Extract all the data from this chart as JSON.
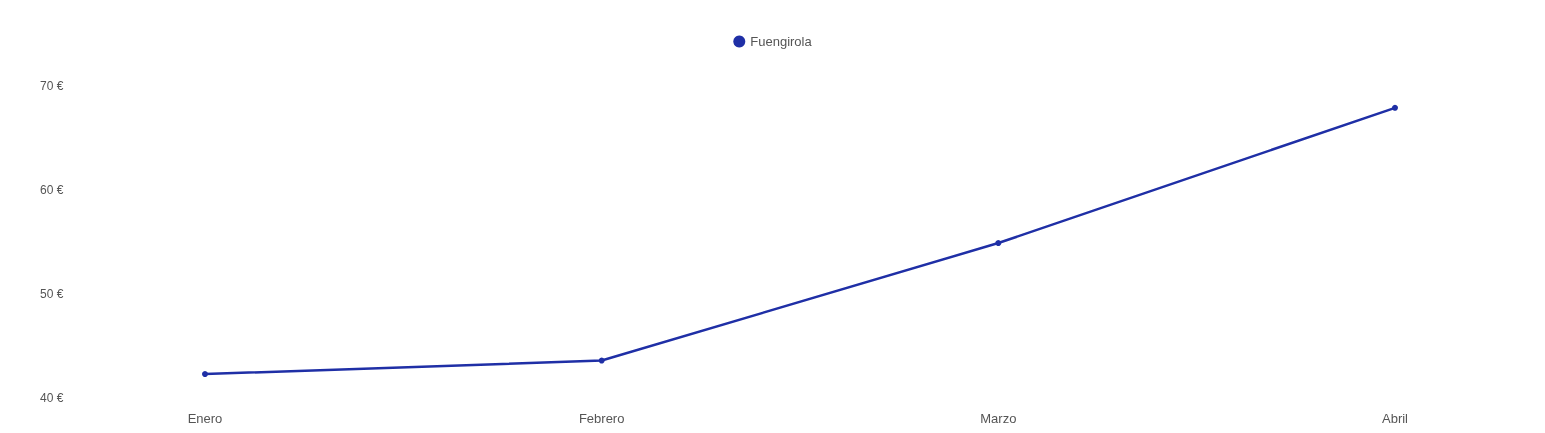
{
  "chart_data": {
    "type": "line",
    "categories": [
      "Enero",
      "Febrero",
      "Marzo",
      "Abril"
    ],
    "series": [
      {
        "name": "Fuengirola",
        "color": "#1f2fa6",
        "values": [
          42.3,
          43.6,
          54.9,
          67.9
        ]
      }
    ],
    "ylim": [
      40,
      70
    ],
    "yticks": [
      {
        "value": 40,
        "label": "40 €"
      },
      {
        "value": 50,
        "label": "50 €"
      },
      {
        "value": 60,
        "label": "60 €"
      },
      {
        "value": 70,
        "label": "70 €"
      }
    ],
    "grid": false,
    "legend": "top",
    "marker": "circle",
    "line_style": "solid"
  }
}
